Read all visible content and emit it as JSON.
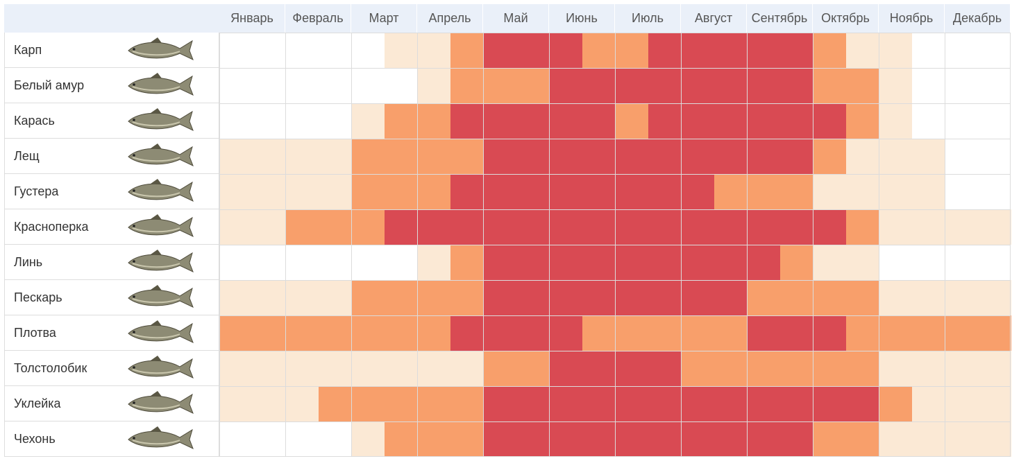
{
  "chart_data": {
    "type": "heatmap",
    "months": [
      "Январь",
      "Февраль",
      "Март",
      "Апрель",
      "Май",
      "Июнь",
      "Июль",
      "Август",
      "Сентябрь",
      "Октябрь",
      "Ноябрь",
      "Декабрь"
    ],
    "levels": {
      "0": "#ffffff",
      "1": "#fbe9d5",
      "2": "#f89f6b",
      "3": "#d94a53"
    },
    "note": "each month is split into two halves; values per fish are 24 half-month activity levels (0 none, 1 weak, 2 good, 3 best)",
    "fish": [
      {
        "name": "Карп",
        "icon": "carp-icon",
        "values": [
          0,
          0,
          0,
          0,
          0,
          1,
          1,
          2,
          3,
          3,
          3,
          2,
          2,
          3,
          3,
          3,
          3,
          3,
          2,
          1,
          1,
          0,
          0,
          0
        ]
      },
      {
        "name": "Белый амур",
        "icon": "grass-carp-icon",
        "values": [
          0,
          0,
          0,
          0,
          0,
          0,
          1,
          2,
          2,
          2,
          3,
          3,
          3,
          3,
          3,
          3,
          3,
          3,
          2,
          2,
          1,
          0,
          0,
          0
        ]
      },
      {
        "name": "Карась",
        "icon": "crucian-icon",
        "values": [
          0,
          0,
          0,
          0,
          1,
          2,
          2,
          3,
          3,
          3,
          3,
          3,
          2,
          3,
          3,
          3,
          3,
          3,
          3,
          2,
          1,
          0,
          0,
          0
        ]
      },
      {
        "name": "Лещ",
        "icon": "bream-icon",
        "values": [
          1,
          1,
          1,
          1,
          2,
          2,
          2,
          2,
          3,
          3,
          3,
          3,
          3,
          3,
          3,
          3,
          3,
          3,
          2,
          1,
          1,
          1,
          0,
          0
        ]
      },
      {
        "name": "Густера",
        "icon": "white-bream-icon",
        "values": [
          1,
          1,
          1,
          1,
          2,
          2,
          2,
          3,
          3,
          3,
          3,
          3,
          3,
          3,
          3,
          2,
          2,
          2,
          1,
          1,
          1,
          1,
          0,
          0
        ]
      },
      {
        "name": "Красноперка",
        "icon": "rudd-icon",
        "values": [
          1,
          1,
          2,
          2,
          2,
          3,
          3,
          3,
          3,
          3,
          3,
          3,
          3,
          3,
          3,
          3,
          3,
          3,
          3,
          2,
          1,
          1,
          1,
          1
        ]
      },
      {
        "name": "Линь",
        "icon": "tench-icon",
        "values": [
          0,
          0,
          0,
          0,
          0,
          0,
          1,
          2,
          3,
          3,
          3,
          3,
          3,
          3,
          3,
          3,
          3,
          2,
          1,
          1,
          0,
          0,
          0,
          0
        ]
      },
      {
        "name": "Пескарь",
        "icon": "gudgeon-icon",
        "values": [
          1,
          1,
          1,
          1,
          2,
          2,
          2,
          2,
          3,
          3,
          3,
          3,
          3,
          3,
          3,
          3,
          2,
          2,
          2,
          2,
          1,
          1,
          1,
          1
        ]
      },
      {
        "name": "Плотва",
        "icon": "roach-icon",
        "values": [
          2,
          2,
          2,
          2,
          2,
          2,
          2,
          3,
          3,
          3,
          3,
          2,
          2,
          2,
          2,
          2,
          3,
          3,
          3,
          2,
          2,
          2,
          2,
          2
        ]
      },
      {
        "name": "Толстолобик",
        "icon": "silver-carp-icon",
        "values": [
          1,
          1,
          1,
          1,
          1,
          1,
          1,
          1,
          2,
          2,
          3,
          3,
          3,
          3,
          2,
          2,
          2,
          2,
          2,
          2,
          1,
          1,
          1,
          1
        ]
      },
      {
        "name": "Уклейка",
        "icon": "bleak-icon",
        "values": [
          1,
          1,
          1,
          2,
          2,
          2,
          2,
          2,
          3,
          3,
          3,
          3,
          3,
          3,
          3,
          3,
          3,
          3,
          3,
          3,
          2,
          1,
          1,
          1
        ]
      },
      {
        "name": "Чехонь",
        "icon": "sabre-carp-icon",
        "values": [
          0,
          0,
          0,
          0,
          1,
          2,
          2,
          2,
          3,
          3,
          3,
          3,
          3,
          3,
          3,
          3,
          3,
          3,
          2,
          2,
          1,
          1,
          1,
          1
        ]
      }
    ]
  }
}
